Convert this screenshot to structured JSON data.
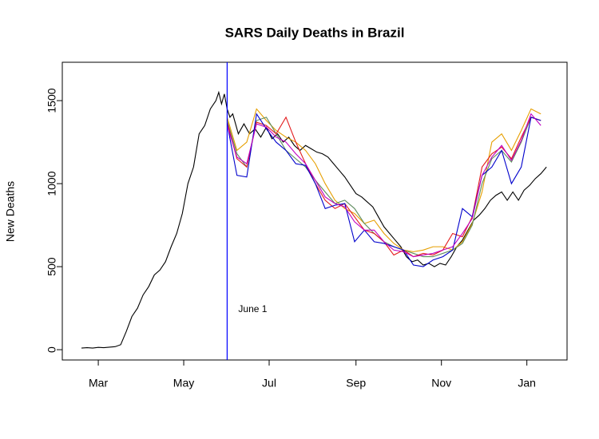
{
  "chart_data": {
    "type": "line",
    "title": "SARS Daily Deaths in Brazil",
    "ylabel": "New Deaths",
    "xlim": [
      -25.7,
      334.7
    ],
    "ylim": [
      -62,
      1731
    ],
    "xticks": [
      {
        "value": 0,
        "label": "Mar"
      },
      {
        "value": 61,
        "label": "May"
      },
      {
        "value": 122,
        "label": "Jul"
      },
      {
        "value": 184,
        "label": "Sep"
      },
      {
        "value": 245,
        "label": "Nov"
      },
      {
        "value": 306,
        "label": "Jan"
      }
    ],
    "yticks": [
      0,
      500,
      1000,
      1500
    ],
    "vline": {
      "x": 92,
      "label": "June 1",
      "color": "#0000ff"
    },
    "series": [
      {
        "color": "#000000",
        "x": [
          -12,
          -8,
          -4,
          0,
          4,
          8,
          12,
          16,
          20,
          24,
          28,
          32,
          36,
          40,
          44,
          48,
          52,
          56,
          60,
          64,
          68,
          72,
          76,
          80,
          84,
          86,
          88,
          90,
          92,
          94,
          96,
          100,
          104,
          108,
          112,
          116,
          120,
          124,
          128,
          132,
          136,
          140,
          144,
          148,
          152,
          156,
          160,
          164,
          168,
          172,
          176,
          180,
          184,
          188,
          192,
          196,
          200,
          204,
          208,
          212,
          216,
          220,
          224,
          228,
          232,
          236,
          240,
          244,
          248,
          252,
          256,
          260,
          264,
          268,
          272,
          276,
          280,
          284,
          288,
          292,
          296,
          300,
          304,
          308,
          312,
          316,
          320
        ],
        "values": [
          10,
          12,
          10,
          14,
          12,
          15,
          18,
          30,
          110,
          200,
          250,
          330,
          380,
          450,
          480,
          530,
          620,
          700,
          820,
          1000,
          1100,
          1300,
          1350,
          1450,
          1500,
          1550,
          1480,
          1540,
          1450,
          1400,
          1420,
          1300,
          1360,
          1300,
          1330,
          1280,
          1340,
          1270,
          1300,
          1250,
          1280,
          1230,
          1200,
          1230,
          1210,
          1190,
          1180,
          1160,
          1120,
          1080,
          1040,
          990,
          940,
          920,
          890,
          860,
          800,
          740,
          700,
          660,
          620,
          560,
          530,
          540,
          510,
          520,
          500,
          520,
          510,
          560,
          620,
          660,
          720,
          780,
          810,
          850,
          900,
          930,
          950,
          900,
          950,
          900,
          960,
          990,
          1030,
          1060,
          1100
        ]
      },
      {
        "color": "#e69f00",
        "x": [
          92,
          99,
          106,
          113,
          120,
          127,
          134,
          141,
          148,
          155,
          162,
          169,
          176,
          183,
          190,
          197,
          204,
          211,
          218,
          225,
          232,
          239,
          246,
          253,
          260,
          267,
          274,
          281,
          288,
          295,
          302,
          309,
          316
        ],
        "values": [
          1400,
          1200,
          1250,
          1450,
          1380,
          1320,
          1280,
          1250,
          1200,
          1120,
          1000,
          900,
          850,
          820,
          760,
          780,
          700,
          640,
          600,
          590,
          600,
          620,
          620,
          600,
          650,
          760,
          950,
          1250,
          1300,
          1200,
          1320,
          1450,
          1420
        ]
      },
      {
        "color": "#5e8c5e",
        "x": [
          92,
          99,
          106,
          113,
          120,
          127,
          134,
          141,
          148,
          155,
          162,
          169,
          176,
          183,
          190,
          197,
          204,
          211,
          218,
          225,
          232,
          239,
          246,
          253,
          260,
          267,
          274,
          281,
          288,
          295,
          302,
          309,
          316
        ],
        "values": [
          1380,
          1180,
          1100,
          1380,
          1400,
          1300,
          1200,
          1150,
          1100,
          1020,
          950,
          880,
          900,
          850,
          760,
          700,
          650,
          620,
          600,
          580,
          560,
          560,
          580,
          600,
          640,
          750,
          1000,
          1150,
          1200,
          1130,
          1250,
          1400,
          1380
        ]
      },
      {
        "color": "#e31a1c",
        "x": [
          92,
          99,
          106,
          113,
          120,
          127,
          134,
          141,
          148,
          155,
          162,
          169,
          176,
          183,
          190,
          197,
          204,
          211,
          218,
          225,
          232,
          239,
          246,
          253,
          260,
          267,
          274,
          281,
          288,
          295,
          302,
          309,
          316
        ],
        "values": [
          1370,
          1150,
          1100,
          1370,
          1350,
          1300,
          1400,
          1250,
          1120,
          1000,
          900,
          850,
          880,
          800,
          720,
          700,
          650,
          570,
          600,
          560,
          580,
          570,
          600,
          700,
          680,
          800,
          1100,
          1180,
          1220,
          1150,
          1280,
          1400,
          1380
        ]
      },
      {
        "color": "#0000cc",
        "x": [
          92,
          99,
          106,
          113,
          120,
          127,
          134,
          141,
          148,
          155,
          162,
          169,
          176,
          183,
          190,
          197,
          204,
          211,
          218,
          225,
          232,
          239,
          246,
          253,
          260,
          267,
          274,
          281,
          288,
          295,
          302,
          309,
          316
        ],
        "values": [
          1360,
          1050,
          1040,
          1420,
          1330,
          1250,
          1200,
          1120,
          1110,
          1000,
          850,
          870,
          880,
          650,
          720,
          650,
          640,
          620,
          600,
          510,
          500,
          540,
          560,
          600,
          850,
          800,
          1050,
          1100,
          1200,
          1000,
          1100,
          1400,
          1380
        ]
      },
      {
        "color": "#c000c0",
        "x": [
          92,
          99,
          106,
          113,
          120,
          127,
          134,
          141,
          148,
          155,
          162,
          169,
          176,
          183,
          190,
          197,
          204,
          211,
          218,
          225,
          232,
          239,
          246,
          253,
          260,
          267,
          274,
          281,
          288,
          295,
          302,
          309,
          316
        ],
        "values": [
          1350,
          1160,
          1120,
          1360,
          1340,
          1280,
          1250,
          1180,
          1120,
          1020,
          920,
          880,
          860,
          770,
          720,
          720,
          650,
          600,
          590,
          560,
          570,
          580,
          600,
          620,
          700,
          790,
          1050,
          1160,
          1230,
          1140,
          1260,
          1420,
          1350
        ]
      }
    ]
  }
}
